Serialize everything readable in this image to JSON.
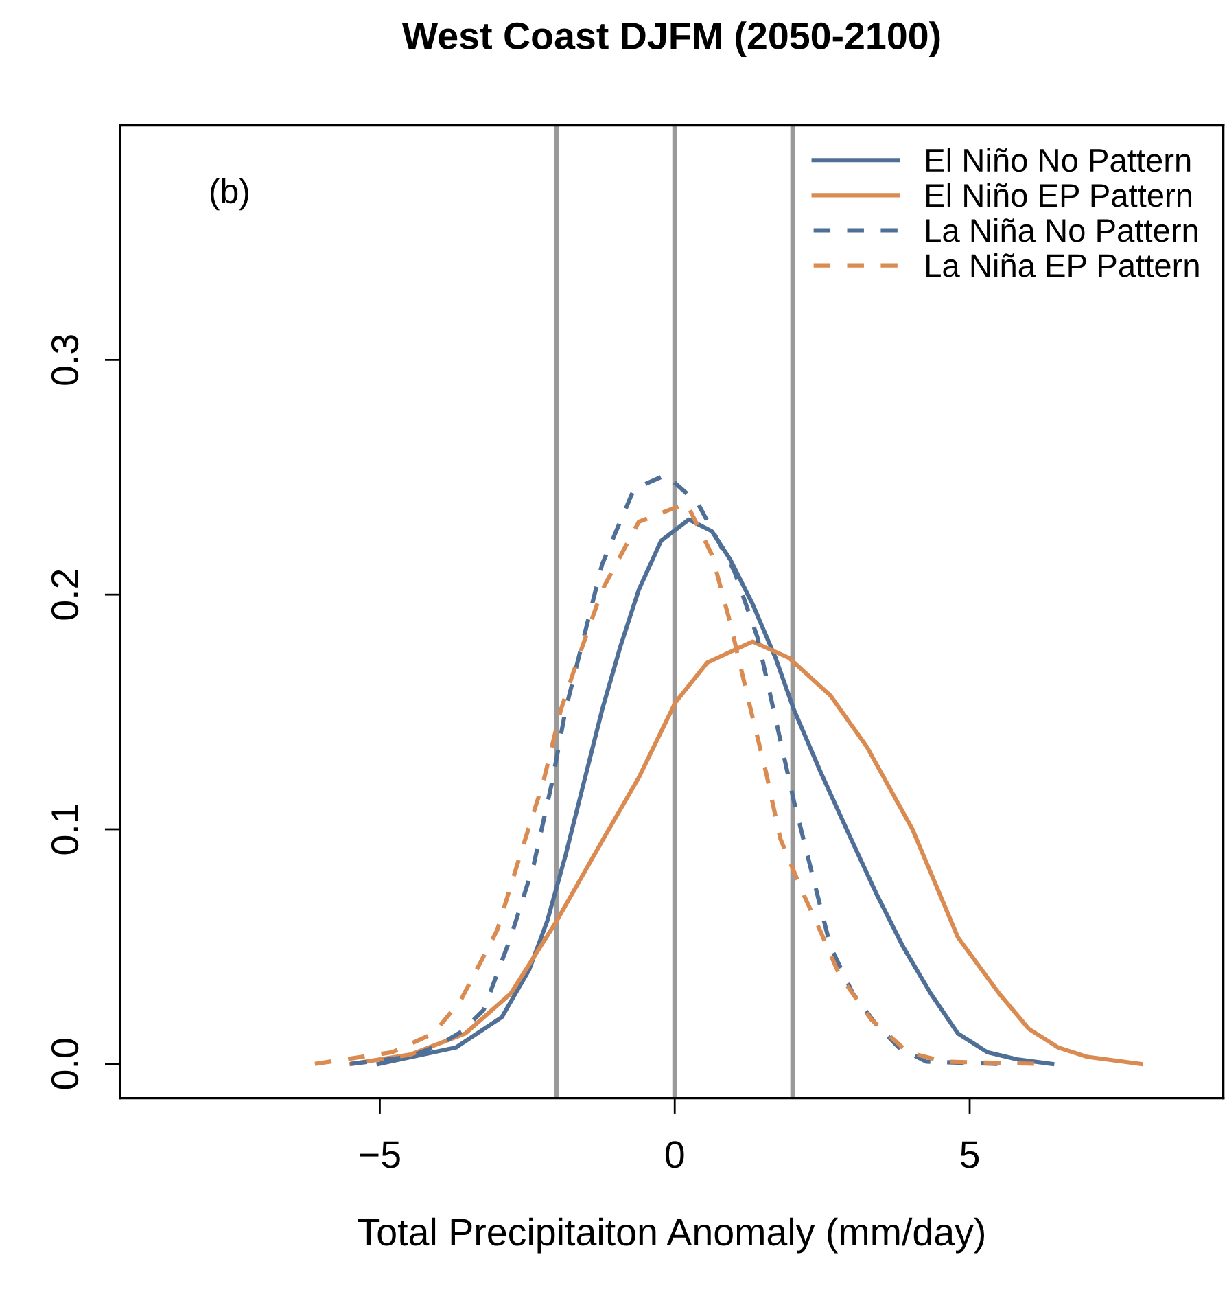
{
  "chart_data": {
    "type": "line",
    "title": "West Coast DJFM (2050-2100)",
    "xlabel": "Total Precipitaiton Anomaly (mm/day)",
    "annotations": [
      "(b)"
    ],
    "xlim": [
      -9.4,
      9.3
    ],
    "ylim": [
      -0.0146,
      0.4
    ],
    "xticks": [
      {
        "value": -5,
        "label": "−5"
      },
      0,
      5
    ],
    "yticks": [
      {
        "value": 0,
        "label": "0.0"
      },
      0.1,
      0.2,
      0.3
    ],
    "grid": false,
    "legend": "top right",
    "ref_lines": [
      {
        "axis": "x",
        "value": -2,
        "color": "#9a9a9a"
      },
      {
        "axis": "x",
        "value": 0,
        "color": "#9a9a9a"
      },
      {
        "axis": "x",
        "value": 2,
        "color": "#9a9a9a"
      }
    ],
    "series": [
      {
        "name": "El Niño No Pattern",
        "color": "#4f6f96",
        "line_style": "solid",
        "x": [
          -5.02,
          -3.71,
          -2.93,
          -2.47,
          -2.16,
          -1.85,
          -1.54,
          -1.23,
          -0.92,
          -0.61,
          -0.23,
          0.24,
          0.63,
          0.94,
          1.32,
          1.71,
          2.02,
          2.48,
          2.95,
          3.41,
          3.87,
          4.34,
          4.8,
          5.3,
          5.8,
          6.4
        ],
        "values": [
          0.0,
          0.007,
          0.02,
          0.04,
          0.061,
          0.089,
          0.12,
          0.151,
          0.178,
          0.202,
          0.223,
          0.232,
          0.227,
          0.215,
          0.196,
          0.173,
          0.151,
          0.124,
          0.098,
          0.073,
          0.05,
          0.03,
          0.013,
          0.005,
          0.002,
          0.0
        ]
      },
      {
        "name": "El Niño EP Pattern",
        "color": "#d98b52",
        "line_style": "solid",
        "x": [
          -5.48,
          -4.48,
          -3.55,
          -2.78,
          -2.0,
          -1.23,
          -0.61,
          0.01,
          0.55,
          1.32,
          1.94,
          2.64,
          3.26,
          4.03,
          4.8,
          5.5,
          6.0,
          6.5,
          7.0,
          7.9
        ],
        "values": [
          0.0,
          0.004,
          0.013,
          0.03,
          0.061,
          0.095,
          0.122,
          0.154,
          0.171,
          0.18,
          0.173,
          0.157,
          0.135,
          0.1,
          0.054,
          0.03,
          0.015,
          0.007,
          0.003,
          0.0
        ]
      },
      {
        "name": "La Niña No Pattern",
        "color": "#4f6f96",
        "line_style": "dashed",
        "x": [
          -5.5,
          -4.5,
          -4.0,
          -3.6,
          -3.24,
          -2.78,
          -2.39,
          -2.08,
          -1.85,
          -1.54,
          -1.23,
          -0.69,
          -0.15,
          0.39,
          1.01,
          1.4,
          1.71,
          2.02,
          2.33,
          2.64,
          3.02,
          3.41,
          3.8,
          4.26,
          5.5
        ],
        "values": [
          0.0,
          0.003,
          0.008,
          0.014,
          0.023,
          0.054,
          0.085,
          0.12,
          0.151,
          0.182,
          0.213,
          0.245,
          0.251,
          0.239,
          0.21,
          0.182,
          0.147,
          0.112,
          0.081,
          0.05,
          0.03,
          0.017,
          0.007,
          0.001,
          0.0
        ]
      },
      {
        "name": "La Niña EP Pattern",
        "color": "#d98b52",
        "line_style": "dashed",
        "x": [
          -6.1,
          -4.79,
          -4.09,
          -3.63,
          -3.01,
          -2.62,
          -2.23,
          -1.93,
          -1.69,
          -1.23,
          -0.61,
          0.2,
          0.63,
          0.94,
          1.25,
          1.55,
          1.79,
          2.17,
          2.48,
          2.79,
          3.33,
          3.95,
          4.57,
          6.2
        ],
        "values": [
          0.0,
          0.005,
          0.013,
          0.027,
          0.057,
          0.089,
          0.12,
          0.151,
          0.169,
          0.202,
          0.231,
          0.239,
          0.217,
          0.188,
          0.155,
          0.124,
          0.096,
          0.073,
          0.056,
          0.038,
          0.019,
          0.005,
          0.001,
          0.0
        ]
      }
    ]
  }
}
